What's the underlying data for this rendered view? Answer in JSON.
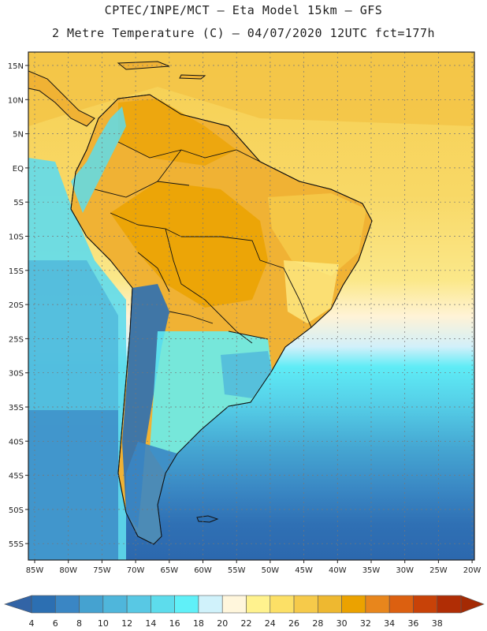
{
  "header": {
    "line1": "CPTEC/INPE/MCT —  Eta Model 15km — GFS",
    "line2": "2 Metre Temperature (C) — 04/07/2020 12UTC fct=177h"
  },
  "map": {
    "region": "South America",
    "lat_labels": [
      "15N",
      "10N",
      "5N",
      "EQ",
      "5S",
      "10S",
      "15S",
      "20S",
      "25S",
      "30S",
      "35S",
      "40S",
      "45S",
      "50S",
      "55S"
    ],
    "lon_labels": [
      "85W",
      "80W",
      "75W",
      "70W",
      "65W",
      "60W",
      "55W",
      "50W",
      "45W",
      "40W",
      "35W",
      "30W",
      "25W",
      "20W"
    ]
  },
  "legend": {
    "labels": [
      "4",
      "6",
      "8",
      "10",
      "12",
      "14",
      "16",
      "18",
      "20",
      "22",
      "24",
      "26",
      "28",
      "30",
      "32",
      "34",
      "36",
      "38"
    ],
    "colors": [
      "#2c6fb2",
      "#3a86c4",
      "#45a2d0",
      "#4fb6db",
      "#58c8e4",
      "#5ddcec",
      "#60f0f8",
      "#d0f2fb",
      "#fff6dc",
      "#fff28e",
      "#fce066",
      "#f6ca4a",
      "#eeb830",
      "#eba200",
      "#e8861c",
      "#dc6010",
      "#c84208",
      "#b02d05"
    ],
    "low_arrow_color": "#3264a6",
    "high_arrow_color": "#a42a04"
  }
}
